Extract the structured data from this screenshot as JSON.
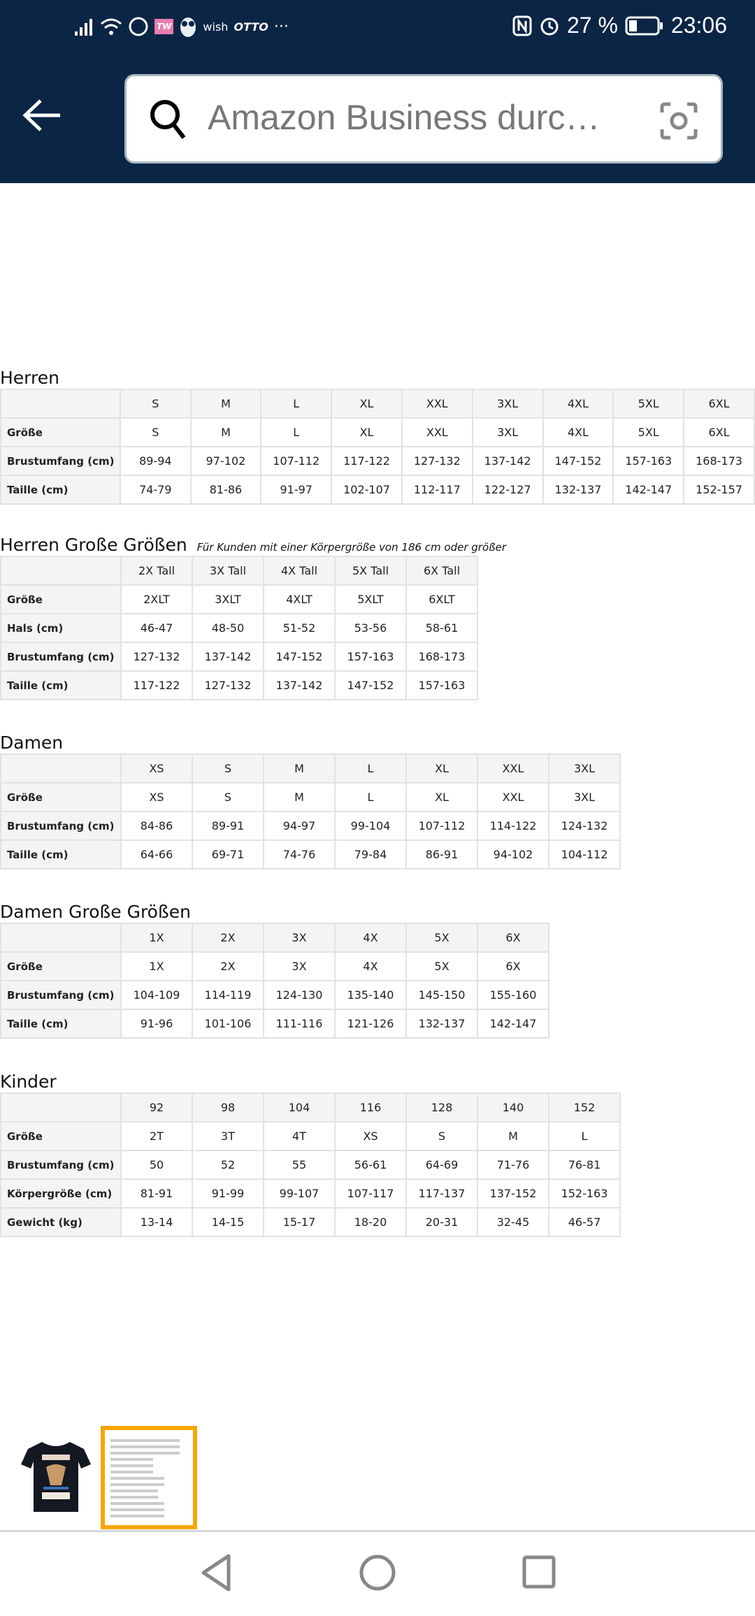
{
  "status": {
    "notif_icons": [
      "signal-icon",
      "wifi-icon",
      "whatsapp-icon",
      "tw-app-icon",
      "owl-app-icon"
    ],
    "wish": "wish",
    "otto": "OTTO",
    "more": "···",
    "battery": "27 %",
    "time": "23:06",
    "tw": "TW"
  },
  "header": {
    "search_placeholder": "Amazon Business durc…",
    "bg_color": "#0b2545"
  },
  "tables": [
    {
      "title": "Herren",
      "note": "",
      "columns": [
        "S",
        "M",
        "L",
        "XL",
        "XXL",
        "3XL",
        "4XL",
        "5XL",
        "6XL"
      ],
      "rows": [
        {
          "label": "Größe",
          "values": [
            "S",
            "M",
            "L",
            "XL",
            "XXL",
            "3XL",
            "4XL",
            "5XL",
            "6XL"
          ]
        },
        {
          "label": "Brustumfang (cm)",
          "values": [
            "89-94",
            "97-102",
            "107-112",
            "117-122",
            "127-132",
            "137-142",
            "147-152",
            "157-163",
            "168-173"
          ]
        },
        {
          "label": "Taille (cm)",
          "values": [
            "74-79",
            "81-86",
            "91-97",
            "102-107",
            "112-117",
            "122-127",
            "132-137",
            "142-147",
            "152-157"
          ]
        }
      ]
    },
    {
      "title": "Herren Große Größen",
      "note": "Für Kunden mit einer Körpergröße von 186 cm oder größer",
      "columns": [
        "2X Tall",
        "3X Tall",
        "4X Tall",
        "5X Tall",
        "6X Tall"
      ],
      "rows": [
        {
          "label": "Größe",
          "values": [
            "2XLT",
            "3XLT",
            "4XLT",
            "5XLT",
            "6XLT"
          ]
        },
        {
          "label": "Hals (cm)",
          "values": [
            "46-47",
            "48-50",
            "51-52",
            "53-56",
            "58-61"
          ]
        },
        {
          "label": "Brustumfang (cm)",
          "values": [
            "127-132",
            "137-142",
            "147-152",
            "157-163",
            "168-173"
          ]
        },
        {
          "label": "Taille (cm)",
          "values": [
            "117-122",
            "127-132",
            "137-142",
            "147-152",
            "157-163"
          ]
        }
      ]
    },
    {
      "title": "Damen",
      "note": "",
      "columns": [
        "XS",
        "S",
        "M",
        "L",
        "XL",
        "XXL",
        "3XL"
      ],
      "rows": [
        {
          "label": "Größe",
          "values": [
            "XS",
            "S",
            "M",
            "L",
            "XL",
            "XXL",
            "3XL"
          ]
        },
        {
          "label": "Brustumfang (cm)",
          "values": [
            "84-86",
            "89-91",
            "94-97",
            "99-104",
            "107-112",
            "114-122",
            "124-132"
          ]
        },
        {
          "label": "Taille (cm)",
          "values": [
            "64-66",
            "69-71",
            "74-76",
            "79-84",
            "86-91",
            "94-102",
            "104-112"
          ]
        }
      ]
    },
    {
      "title": "Damen Große Größen",
      "note": "",
      "columns": [
        "1X",
        "2X",
        "3X",
        "4X",
        "5X",
        "6X"
      ],
      "rows": [
        {
          "label": "Größe",
          "values": [
            "1X",
            "2X",
            "3X",
            "4X",
            "5X",
            "6X"
          ]
        },
        {
          "label": "Brustumfang (cm)",
          "values": [
            "104-109",
            "114-119",
            "124-130",
            "135-140",
            "145-150",
            "155-160"
          ]
        },
        {
          "label": "Taille (cm)",
          "values": [
            "91-96",
            "101-106",
            "111-116",
            "121-126",
            "132-137",
            "142-147"
          ]
        }
      ]
    },
    {
      "title": "Kinder",
      "note": "",
      "columns": [
        "92",
        "98",
        "104",
        "116",
        "128",
        "140",
        "152"
      ],
      "rows": [
        {
          "label": "Größe",
          "values": [
            "2T",
            "3T",
            "4T",
            "XS",
            "S",
            "M",
            "L"
          ]
        },
        {
          "label": "Brustumfang (cm)",
          "values": [
            "50",
            "52",
            "55",
            "56-61",
            "64-69",
            "71-76",
            "76-81"
          ]
        },
        {
          "label": "Körpergröße (cm)",
          "values": [
            "81-91",
            "91-99",
            "99-107",
            "107-117",
            "117-137",
            "137-152",
            "152-163"
          ]
        },
        {
          "label": "Gewicht (kg)",
          "values": [
            "13-14",
            "14-15",
            "15-17",
            "18-20",
            "20-31",
            "32-45",
            "46-57"
          ]
        }
      ]
    }
  ],
  "thumbnails": [
    {
      "name": "t-shirt-image",
      "selected": false,
      "logo_text": "MEI LEDERHOSN ... HIRSCH"
    },
    {
      "name": "size-chart-image",
      "selected": true
    }
  ],
  "accent_color": "#f7a600"
}
